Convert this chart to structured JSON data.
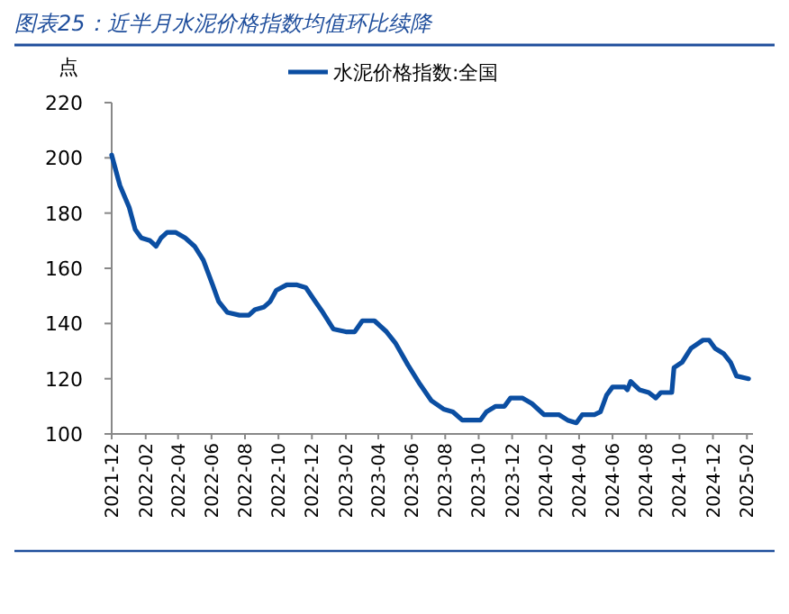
{
  "chart_data": {
    "type": "line",
    "title": "图表25：近半月水泥价格指数均值环比续降",
    "ylabel": "点",
    "x": [
      "2021-12-01",
      "2021-12-16",
      "2022-01-02",
      "2022-01-13",
      "2022-01-24",
      "2022-02-09",
      "2022-02-20",
      "2022-03-01",
      "2022-03-12",
      "2022-03-28",
      "2022-04-14",
      "2022-05-01",
      "2022-05-17",
      "2022-06-03",
      "2022-06-14",
      "2022-06-30",
      "2022-07-22",
      "2022-08-08",
      "2022-08-19",
      "2022-09-05",
      "2022-09-16",
      "2022-09-27",
      "2022-10-16",
      "2022-11-04",
      "2022-11-20",
      "2022-12-07",
      "2022-12-21",
      "2023-01-09",
      "2023-02-01",
      "2023-02-17",
      "2023-03-03",
      "2023-03-25",
      "2023-04-16",
      "2023-05-02",
      "2023-05-25",
      "2023-06-16",
      "2023-07-07",
      "2023-07-29",
      "2023-08-15",
      "2023-09-01",
      "2023-09-18",
      "2023-10-04",
      "2023-10-15",
      "2023-11-01",
      "2023-11-17",
      "2023-11-28",
      "2023-12-20",
      "2024-01-06",
      "2024-01-28",
      "2024-02-24",
      "2024-03-11",
      "2024-03-27",
      "2024-04-07",
      "2024-04-29",
      "2024-05-10",
      "2024-05-21",
      "2024-06-01",
      "2024-06-23",
      "2024-06-28",
      "2024-07-04",
      "2024-07-20",
      "2024-08-06",
      "2024-08-19",
      "2024-08-28",
      "2024-09-17",
      "2024-09-21",
      "2024-10-06",
      "2024-10-22",
      "2024-11-13",
      "2024-11-24",
      "2024-12-05",
      "2024-12-21",
      "2025-01-02",
      "2025-01-13",
      "2025-02-04"
    ],
    "series": [
      {
        "name": "水泥价格指数:全国",
        "color": "#0b4ea2",
        "values": [
          201,
          190,
          182,
          174,
          171,
          170,
          168,
          171,
          173,
          173,
          171,
          168,
          163,
          154,
          148,
          144,
          143,
          143,
          145,
          146,
          148,
          152,
          154,
          154,
          153,
          148,
          144,
          138,
          137,
          137,
          141,
          141,
          137,
          133,
          125,
          118,
          112,
          109,
          108,
          105,
          105,
          105,
          108,
          110,
          110,
          113,
          113,
          111,
          107,
          107,
          105,
          104,
          107,
          107,
          108,
          114,
          117,
          117,
          116,
          119,
          116,
          115,
          113,
          115,
          115,
          124,
          126,
          131,
          134,
          134,
          131,
          129,
          126,
          121,
          120
        ]
      }
    ],
    "xlim": [
      "2021-12-01",
      "2025-02-12"
    ],
    "xticks": [
      "2021-12",
      "2022-02",
      "2022-04",
      "2022-06",
      "2022-08",
      "2022-10",
      "2022-12",
      "2023-02",
      "2023-04",
      "2023-06",
      "2023-08",
      "2023-10",
      "2023-12",
      "2024-02",
      "2024-04",
      "2024-06",
      "2024-08",
      "2024-10",
      "2024-12",
      "2025-02"
    ],
    "ylim": [
      100,
      220
    ],
    "yticks": [
      100,
      120,
      140,
      160,
      180,
      200,
      220
    ],
    "legend": "top"
  }
}
